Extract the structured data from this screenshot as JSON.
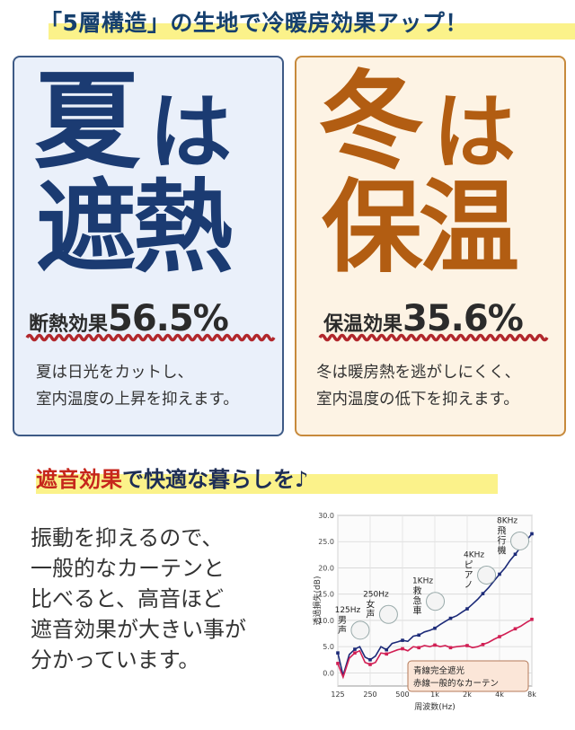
{
  "headline": "「5層構造」の生地で冷暖房効果アップ！",
  "summer": {
    "line1_kanji": "夏",
    "line1_kana": "は",
    "line2": "遮熱",
    "effect_label": "断熱効果",
    "effect_value": "56.5%",
    "desc": [
      "夏は日光をカットし、",
      "室内温度の上昇を抑えます。"
    ],
    "accent": "#1b3b72"
  },
  "winter": {
    "line1_kanji": "冬",
    "line1_kana": "は",
    "line2": "保温",
    "effect_label": "保温効果",
    "effect_value": "35.6%",
    "desc": [
      "冬は暖房熱を逃がしにくく、",
      "室内温度の低下を抑えます。"
    ],
    "accent": "#b25d12"
  },
  "sound": {
    "heading_red": "遮音効果",
    "heading_rest": "で快適な暮らしを♪",
    "body": [
      "振動を抑えるので、",
      "一般的なカーテンと",
      "比べると、高音ほど",
      "遮音効果が大きい事が",
      "分かっています。"
    ]
  },
  "chart_data": {
    "type": "line",
    "ylabel": "透過損失(dB)",
    "xlabel": "周波数(Hz)",
    "ylim": [
      -2.5,
      30
    ],
    "y_ticks": [
      "30.0",
      "25.0",
      "20.0",
      "15.0",
      "10.0",
      "5.0",
      "0.0"
    ],
    "x_ticks": [
      "125",
      "250",
      "500",
      "1k",
      "2k",
      "4k",
      "8k"
    ],
    "grid": true,
    "legend": [
      "青線完全遮光",
      "赤線一般的なカーテン"
    ],
    "legend_position": "bottom-right",
    "series": [
      {
        "color": "#1c2a78",
        "values": [
          [
            125,
            3.8
          ],
          [
            140,
            -0.5
          ],
          [
            160,
            3.5
          ],
          [
            180,
            4.5
          ],
          [
            200,
            5.0
          ],
          [
            224,
            3.0
          ],
          [
            250,
            2.5
          ],
          [
            280,
            3.2
          ],
          [
            315,
            5.0
          ],
          [
            355,
            4.4
          ],
          [
            400,
            5.6
          ],
          [
            450,
            5.9
          ],
          [
            500,
            6.2
          ],
          [
            560,
            6.0
          ],
          [
            630,
            7.0
          ],
          [
            710,
            7.2
          ],
          [
            800,
            7.8
          ],
          [
            900,
            8.1
          ],
          [
            1000,
            8.5
          ],
          [
            1120,
            9.2
          ],
          [
            1250,
            9.8
          ],
          [
            1400,
            10.4
          ],
          [
            1600,
            10.9
          ],
          [
            1800,
            11.6
          ],
          [
            2000,
            12.2
          ],
          [
            2240,
            13.1
          ],
          [
            2500,
            14.0
          ],
          [
            2800,
            15.1
          ],
          [
            3150,
            16.2
          ],
          [
            3550,
            17.5
          ],
          [
            4000,
            18.8
          ],
          [
            4500,
            20.0
          ],
          [
            5000,
            21.4
          ],
          [
            5600,
            22.6
          ],
          [
            6300,
            24.0
          ],
          [
            7100,
            25.2
          ],
          [
            8000,
            26.5
          ]
        ]
      },
      {
        "color": "#d11f54",
        "values": [
          [
            125,
            1.8
          ],
          [
            140,
            -0.8
          ],
          [
            160,
            2.8
          ],
          [
            180,
            3.8
          ],
          [
            200,
            4.2
          ],
          [
            224,
            2.0
          ],
          [
            250,
            1.6
          ],
          [
            280,
            2.0
          ],
          [
            315,
            3.8
          ],
          [
            355,
            3.6
          ],
          [
            400,
            4.0
          ],
          [
            450,
            4.4
          ],
          [
            500,
            4.6
          ],
          [
            560,
            4.2
          ],
          [
            630,
            5.0
          ],
          [
            710,
            4.8
          ],
          [
            800,
            5.2
          ],
          [
            900,
            5.0
          ],
          [
            1000,
            5.3
          ],
          [
            1120,
            5.0
          ],
          [
            1250,
            5.2
          ],
          [
            1400,
            4.8
          ],
          [
            1600,
            5.0
          ],
          [
            1800,
            5.1
          ],
          [
            2000,
            5.2
          ],
          [
            2240,
            4.8
          ],
          [
            2500,
            5.0
          ],
          [
            2800,
            5.4
          ],
          [
            3150,
            5.8
          ],
          [
            3550,
            6.4
          ],
          [
            4000,
            6.9
          ],
          [
            4500,
            7.4
          ],
          [
            5000,
            7.9
          ],
          [
            5600,
            8.4
          ],
          [
            6300,
            8.9
          ],
          [
            7100,
            9.6
          ],
          [
            8000,
            10.2
          ]
        ]
      }
    ],
    "annotations": [
      {
        "hz": "125Hz",
        "label": "男声",
        "x": 180,
        "y": 9.5
      },
      {
        "hz": "250Hz",
        "label": "女声",
        "x": 330,
        "y": 12.5
      },
      {
        "hz": "1KHz",
        "label": "救急車",
        "x": 900,
        "y": 15.0
      },
      {
        "hz": "4KHz",
        "label": "ピアノ",
        "x": 2700,
        "y": 20.0
      },
      {
        "hz": "8KHz",
        "label": "飛行機",
        "x": 5500,
        "y": 26.5
      }
    ]
  }
}
